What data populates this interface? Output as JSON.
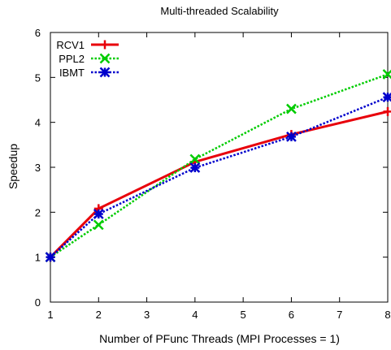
{
  "chart_data": {
    "type": "line",
    "title": "Multi-threaded Scalability",
    "xlabel": "Number of PFunc Threads (MPI Processes = 1)",
    "ylabel": "Speedup",
    "xlim": [
      1,
      8
    ],
    "ylim": [
      0,
      6
    ],
    "xticks": [
      1,
      2,
      3,
      4,
      5,
      6,
      7,
      8
    ],
    "yticks": [
      0,
      1,
      2,
      3,
      4,
      5,
      6
    ],
    "x": [
      1,
      2,
      4,
      6,
      8
    ],
    "grid": false,
    "legend_position": "top-left",
    "series": [
      {
        "name": "RCV1",
        "values": [
          1.0,
          2.08,
          3.12,
          3.73,
          4.24
        ],
        "color": "#e8000b",
        "marker": "plus",
        "line": "solid"
      },
      {
        "name": "PPL2",
        "values": [
          1.0,
          1.72,
          3.18,
          4.3,
          5.07
        ],
        "color": "#00cc00",
        "marker": "cross",
        "line": "dotted"
      },
      {
        "name": "IBMT",
        "values": [
          1.0,
          1.96,
          2.99,
          3.68,
          4.56
        ],
        "color": "#0000cc",
        "marker": "star",
        "line": "dotted"
      }
    ]
  }
}
